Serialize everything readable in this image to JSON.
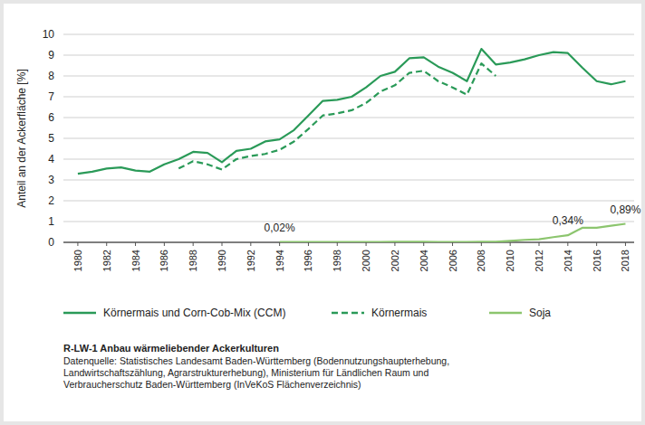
{
  "chart_data": {
    "type": "line",
    "title": "R-LW-1 Anbau wärmeliebender Ackerkulturen",
    "source": [
      "Datenquelle: Statistisches Landesamt Baden-Württemberg (Bodennutzungshaupterhebung,",
      "Landwirtschaftszählung, Agrarstrukturerhebung), Ministerium für Ländlichen Raum und",
      "Verbraucherschutz Baden-Württemberg (InVeKoS Flächenverzeichnis)"
    ],
    "y_label": "Anteil an der Ackerfläche [%]",
    "x": [
      1980,
      1981,
      1982,
      1983,
      1984,
      1985,
      1986,
      1987,
      1988,
      1989,
      1990,
      1991,
      1992,
      1993,
      1994,
      1995,
      1996,
      1997,
      1998,
      1999,
      2000,
      2001,
      2002,
      2003,
      2004,
      2005,
      2006,
      2007,
      2008,
      2009,
      2010,
      2011,
      2012,
      2013,
      2014,
      2015,
      2016,
      2017,
      2018
    ],
    "series": [
      {
        "name": "Körnermais und Corn-Cob-Mix (CCM)",
        "color": "#2a9a58",
        "line_style": "solid",
        "values": [
          3.3,
          3.4,
          3.55,
          3.6,
          3.45,
          3.4,
          3.75,
          4.0,
          4.35,
          4.3,
          3.85,
          4.4,
          4.5,
          4.85,
          4.95,
          5.4,
          6.1,
          6.8,
          6.85,
          7.0,
          7.45,
          8.0,
          8.2,
          8.85,
          8.9,
          8.45,
          8.15,
          7.75,
          9.3,
          8.55,
          8.65,
          8.8,
          9.0,
          9.15,
          9.1,
          8.4,
          7.75,
          7.6,
          7.75
        ]
      },
      {
        "name": "Körnermais",
        "color": "#2a9a58",
        "line_style": "dashed",
        "values": [
          null,
          null,
          null,
          null,
          null,
          null,
          null,
          3.55,
          3.9,
          3.75,
          3.5,
          4.0,
          4.15,
          4.25,
          4.45,
          4.85,
          5.45,
          6.1,
          6.2,
          6.35,
          6.7,
          7.25,
          7.55,
          8.15,
          8.25,
          7.75,
          7.45,
          7.1,
          8.6,
          8.0,
          null,
          null,
          null,
          null,
          null,
          null,
          null,
          null,
          null
        ]
      },
      {
        "name": "Soja",
        "color": "#8cc56e",
        "line_style": "solid",
        "values": [
          null,
          null,
          null,
          null,
          null,
          null,
          null,
          null,
          null,
          null,
          null,
          null,
          null,
          null,
          0.02,
          0.02,
          0.02,
          0.02,
          0.02,
          0.02,
          0.02,
          0.02,
          0.03,
          0.03,
          0.03,
          0.02,
          0.02,
          0.02,
          0.03,
          0.03,
          0.07,
          0.12,
          0.15,
          0.25,
          0.34,
          0.7,
          0.7,
          0.8,
          0.89
        ]
      }
    ],
    "annotations": [
      {
        "x": 1994,
        "y": 0.02,
        "label": "0,02%"
      },
      {
        "x": 2014,
        "y": 0.34,
        "label": "0,34%"
      },
      {
        "x": 2018,
        "y": 0.89,
        "label": "0,89%"
      }
    ],
    "xlim": [
      1979,
      2018.6
    ],
    "xticks": [
      1980,
      1982,
      1984,
      1986,
      1988,
      1990,
      1992,
      1994,
      1996,
      1998,
      2000,
      2002,
      2004,
      2006,
      2008,
      2010,
      2012,
      2014,
      2016,
      2018
    ],
    "ylim": [
      0,
      10
    ],
    "yticks": [
      0,
      1,
      2,
      3,
      4,
      5,
      6,
      7,
      8,
      9,
      10
    ],
    "grid": true,
    "legend": "bottom"
  }
}
